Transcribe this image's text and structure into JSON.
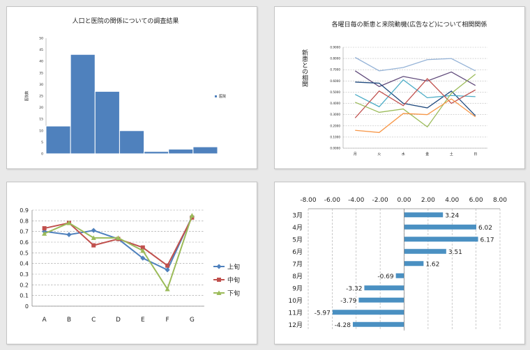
{
  "chart_data": [
    {
      "type": "bar",
      "title": "人口と医院の関係についての調査結果",
      "ylabel": "医院数",
      "ylim": [
        0,
        50
      ],
      "yticks": [
        0,
        5,
        10,
        15,
        20,
        25,
        30,
        35,
        40,
        45,
        50
      ],
      "values": [
        12,
        43,
        27,
        10,
        1,
        2,
        3
      ],
      "color": "#4f81bd",
      "legend": "医院",
      "legend_position": "right"
    },
    {
      "type": "line",
      "title": "各曜日毎の新患と来院動機(広告など)について相関関係",
      "ylabel": "新患との相関",
      "categories": [
        "月",
        "火",
        "水",
        "金",
        "土",
        "日"
      ],
      "ylim": [
        0,
        0.9
      ],
      "yticks": [
        "0.0000",
        "0.1000",
        "0.2000",
        "0.3000",
        "0.4000",
        "0.5000",
        "0.6000",
        "0.7000",
        "0.8000",
        "0.9000"
      ],
      "grid": true,
      "series": [
        {
          "color": "#95b3d7",
          "values": [
            0.81,
            0.69,
            0.72,
            0.79,
            0.8,
            0.69
          ]
        },
        {
          "color": "#604a7b",
          "values": [
            0.69,
            0.55,
            0.64,
            0.6,
            0.68,
            0.56
          ]
        },
        {
          "color": "#1f497d",
          "values": [
            0.59,
            0.58,
            0.4,
            0.36,
            0.51,
            0.29
          ]
        },
        {
          "color": "#4bacc6",
          "values": [
            0.48,
            0.37,
            0.61,
            0.45,
            0.47,
            0.46
          ]
        },
        {
          "color": "#c0504d",
          "values": [
            0.27,
            0.51,
            0.38,
            0.62,
            0.4,
            0.52
          ]
        },
        {
          "color": "#9bbb59",
          "values": [
            0.41,
            0.32,
            0.35,
            0.19,
            0.49,
            0.66
          ]
        },
        {
          "color": "#f79646",
          "values": [
            0.16,
            0.14,
            0.31,
            0.3,
            0.44,
            0.28
          ]
        }
      ]
    },
    {
      "type": "line",
      "categories": [
        "A",
        "B",
        "C",
        "D",
        "E",
        "F",
        "G"
      ],
      "ylim": [
        0,
        0.9
      ],
      "yticks": [
        "0",
        "0.1",
        "0.2",
        "0.3",
        "0.4",
        "0.5",
        "0.6",
        "0.7",
        "0.8",
        "0.9"
      ],
      "grid": true,
      "legend_position": "right",
      "series": [
        {
          "name": "上旬",
          "color": "#4f81bd",
          "marker": "diamond",
          "values": [
            0.7,
            0.67,
            0.71,
            0.63,
            0.45,
            0.34,
            0.84
          ]
        },
        {
          "name": "中旬",
          "color": "#c0504d",
          "marker": "square",
          "values": [
            0.73,
            0.78,
            0.57,
            0.63,
            0.55,
            0.38,
            0.83
          ]
        },
        {
          "name": "下旬",
          "color": "#9bbb59",
          "marker": "triangle",
          "values": [
            0.68,
            0.78,
            0.64,
            0.64,
            0.52,
            0.16,
            0.85
          ]
        }
      ]
    },
    {
      "type": "bar",
      "orientation": "horizontal",
      "categories": [
        "3月",
        "4月",
        "5月",
        "6月",
        "7月",
        "8月",
        "9月",
        "10月",
        "11月",
        "12月"
      ],
      "values": [
        3.24,
        6.02,
        6.17,
        3.51,
        1.62,
        -0.69,
        -3.32,
        -3.79,
        -5.97,
        -4.28
      ],
      "value_labels": [
        "3.24",
        "6.02",
        "6.17",
        "3.51",
        "1.62",
        "-0.69",
        "-3.32",
        "-3.79",
        "-5.97",
        "-4.28"
      ],
      "xlim": [
        -8,
        8
      ],
      "xticks": [
        "-8.00",
        "-6.00",
        "-4.00",
        "-2.00",
        "0.00",
        "2.00",
        "4.00",
        "6.00",
        "8.00"
      ],
      "color": "#4a90c2",
      "grid": true
    }
  ]
}
